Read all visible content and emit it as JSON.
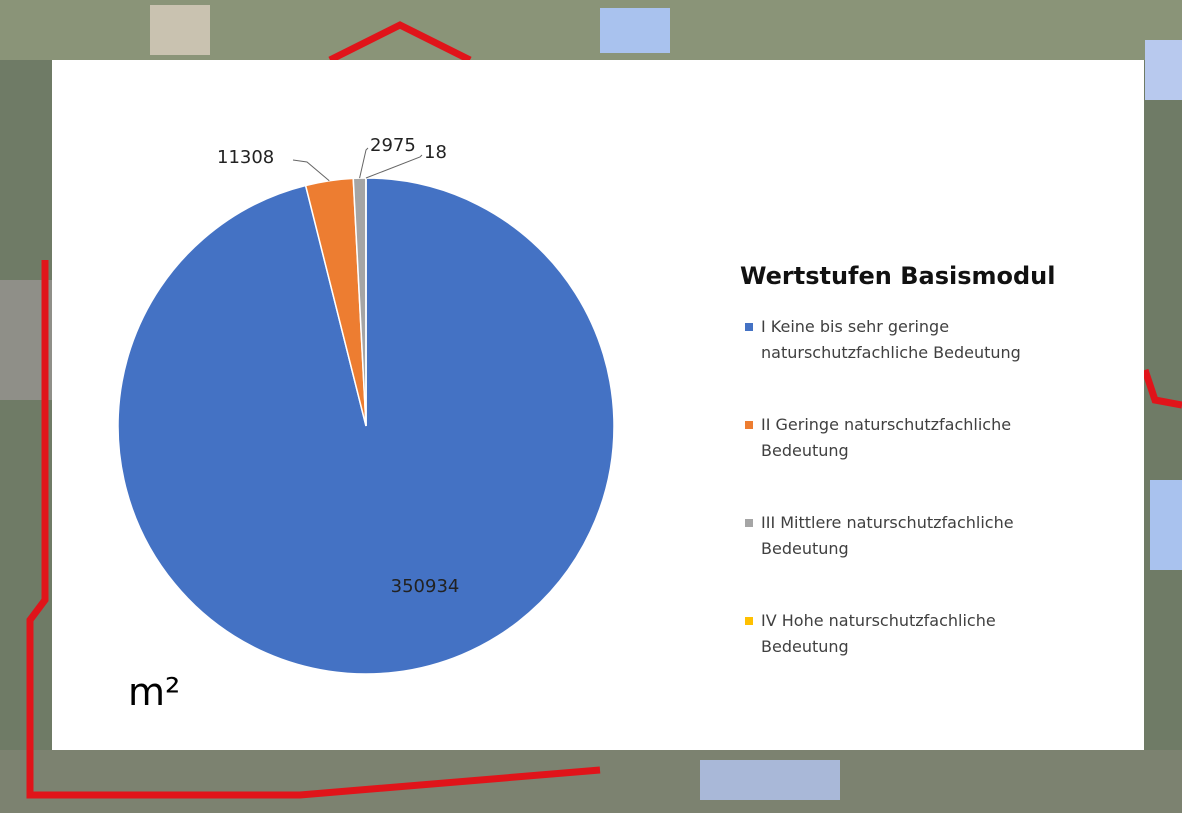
{
  "chart_data": {
    "type": "pie",
    "legend_title": "Wertstufen Basismodul",
    "unit": "m²",
    "categories": [
      "I Keine bis sehr geringe naturschutzfachliche Bedeutung",
      "II Geringe naturschutzfachliche Bedeutung",
      "III Mittlere naturschutzfachliche Bedeutung",
      "IV Hohe naturschutzfachliche Bedeutung"
    ],
    "values": [
      350934,
      11308,
      2975,
      18
    ],
    "colors": [
      "#4472c4",
      "#ed7d31",
      "#a5a5a5",
      "#ffc000"
    ]
  }
}
